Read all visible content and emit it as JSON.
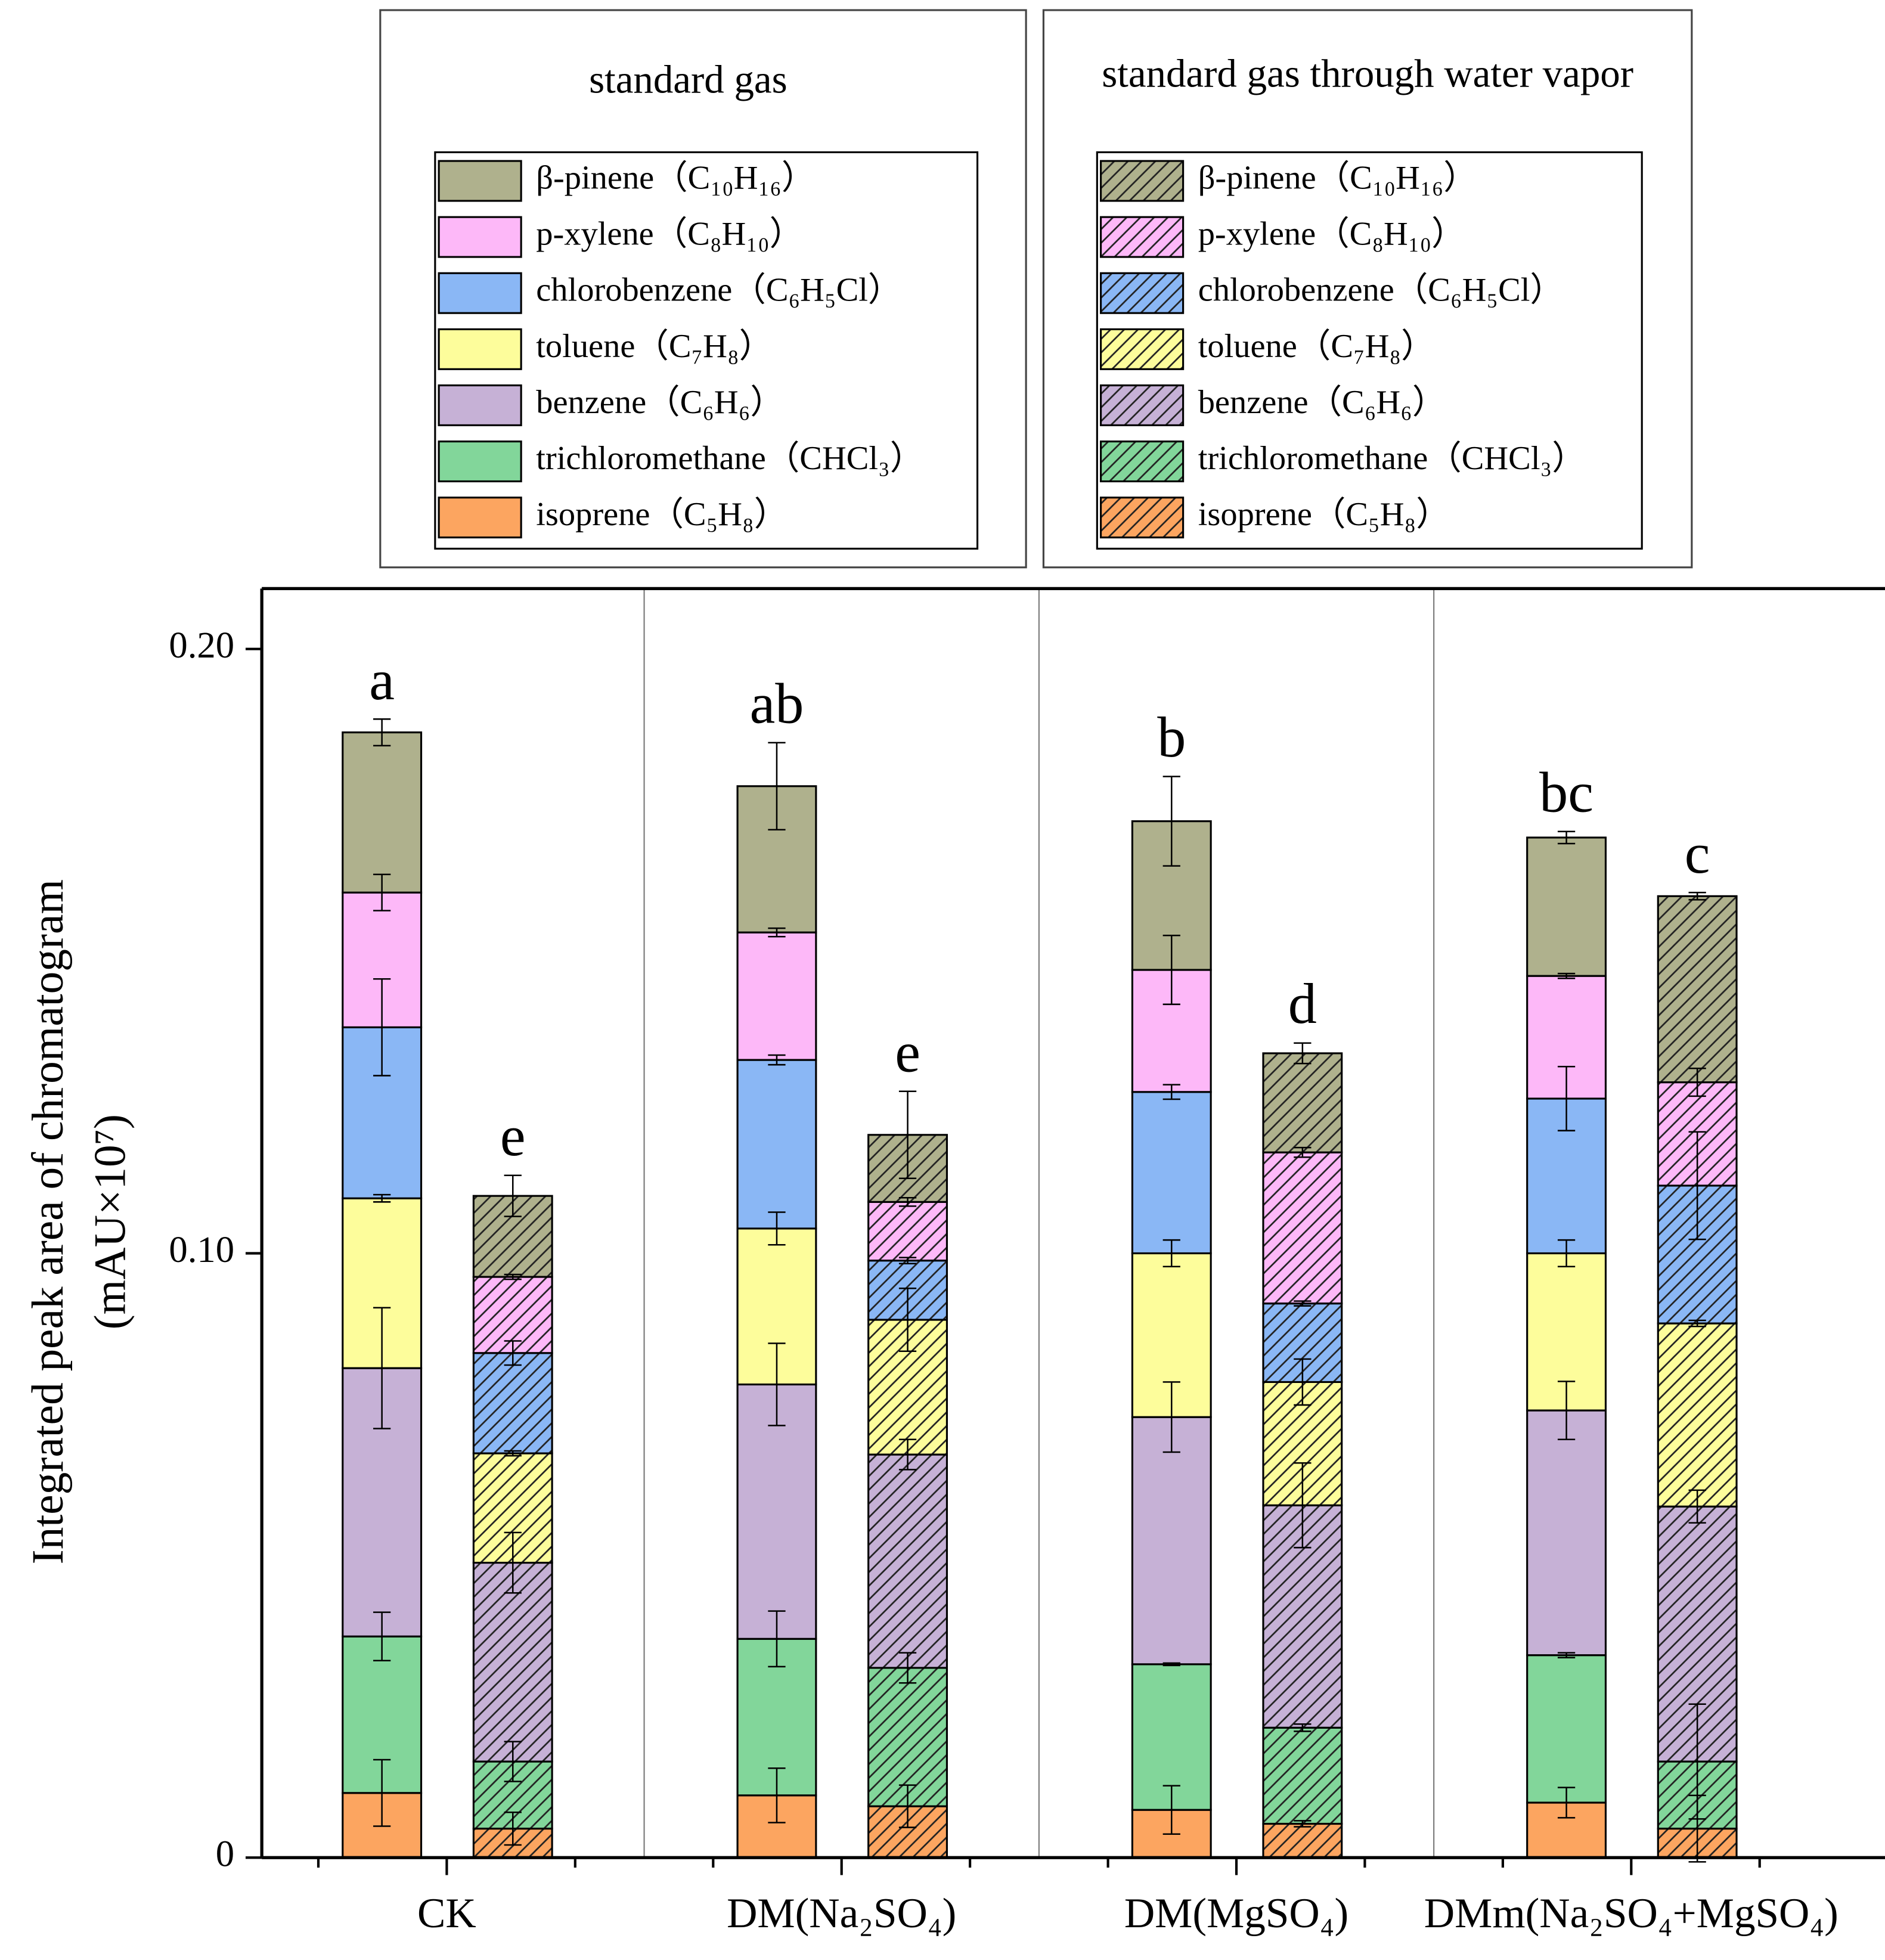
{
  "chart_data": {
    "type": "stacked-bar",
    "ylabel": [
      "Integrated peak area of chromatogram",
      "(mAU×10⁷)"
    ],
    "categories": [
      "CK",
      "DM(Na₂SO₄)",
      "DM(MgSO₄)",
      "DMm(Na₂SO₄+MgSO₄)"
    ],
    "ylim": [
      0,
      0.21
    ],
    "yticks": [
      0,
      {
        "value": 0.1,
        "label": "0.10"
      },
      {
        "value": 0.2,
        "label": "0.20"
      }
    ],
    "groups": [
      {
        "name": "standard gas",
        "hatch": false,
        "letters": [
          "a",
          "ab",
          "b",
          "bc"
        ],
        "series": [
          {
            "name": "isoprene（C₅H₈）",
            "color": "#fca560",
            "values": [
              0.0107,
              0.0103,
              0.0079,
              0.0091
            ],
            "errors": [
              0.0055,
              0.0045,
              0.004,
              0.0025
            ]
          },
          {
            "name": "trichloromethane（CHCl₃）",
            "color": "#82d69a",
            "values": [
              0.0259,
              0.0259,
              0.0241,
              0.0244
            ],
            "errors": [
              0.004,
              0.0046,
              0.0002,
              0.0004
            ]
          },
          {
            "name": "benzene（C₆H₆）",
            "color": "#c6b1d6",
            "values": [
              0.0444,
              0.0421,
              0.0409,
              0.0405
            ],
            "errors": [
              0.01,
              0.0068,
              0.0058,
              0.0048
            ]
          },
          {
            "name": "toluene（C₇H₈）",
            "color": "#fdfd9b",
            "values": [
              0.0281,
              0.0258,
              0.0271,
              0.026
            ],
            "errors": [
              0.0006,
              0.0027,
              0.0022,
              0.0022
            ]
          },
          {
            "name": "chlorobenzene（C₆H₅Cl）",
            "color": "#8ab7f5",
            "values": [
              0.0283,
              0.0279,
              0.0267,
              0.0256
            ],
            "errors": [
              0.008,
              0.0008,
              0.0012,
              0.0053
            ]
          },
          {
            "name": "p-xylene（C₈H₁₀）",
            "color": "#fdb8f8",
            "values": [
              0.0223,
              0.0211,
              0.0202,
              0.0203
            ],
            "errors": [
              0.003,
              0.0007,
              0.0057,
              0.0004
            ]
          },
          {
            "name": "β-pinene（C₁₀H₁₆）",
            "color": "#afb18d",
            "values": [
              0.0265,
              0.0242,
              0.0246,
              0.0229
            ],
            "errors": [
              0.0022,
              0.0072,
              0.0074,
              0.001
            ]
          }
        ]
      },
      {
        "name": "standard gas through water vapor",
        "hatch": true,
        "letters": [
          "e",
          "e",
          "d",
          "c"
        ],
        "series": [
          {
            "name": "isoprene（C₅H₈）",
            "color": "#fca560",
            "values": [
              0.0048,
              0.0085,
              0.0056,
              0.0048
            ],
            "errors": [
              0.0027,
              0.0035,
              0.0005,
              0.0055
            ]
          },
          {
            "name": "trichloromethane（CHCl₃）",
            "color": "#82d69a",
            "values": [
              0.0111,
              0.0229,
              0.0159,
              0.0111
            ],
            "errors": [
              0.0033,
              0.0025,
              0.0006,
              0.0095
            ]
          },
          {
            "name": "benzene（C₆H₆）",
            "color": "#c6b1d6",
            "values": [
              0.0329,
              0.0353,
              0.0368,
              0.0422
            ],
            "errors": [
              0.005,
              0.0025,
              0.007,
              0.0027
            ]
          },
          {
            "name": "toluene（C₇H₈）",
            "color": "#fdfd9b",
            "values": [
              0.0181,
              0.0223,
              0.0204,
              0.0303
            ],
            "errors": [
              0.0004,
              0.0052,
              0.0038,
              0.0005
            ]
          },
          {
            "name": "chlorobenzene（C₆H₅Cl）",
            "color": "#8ab7f5",
            "values": [
              0.0166,
              0.0098,
              0.013,
              0.0228
            ],
            "errors": [
              0.002,
              0.0005,
              0.0004,
              0.0089
            ]
          },
          {
            "name": "p-xylene（C₈H₁₀）",
            "color": "#fdb8f8",
            "values": [
              0.0126,
              0.0097,
              0.025,
              0.0171
            ],
            "errors": [
              0.0004,
              0.0007,
              0.0008,
              0.0023
            ]
          },
          {
            "name": "β-pinene（C₁₀H₁₆）",
            "color": "#afb18d",
            "values": [
              0.0134,
              0.0111,
              0.0164,
              0.0308
            ],
            "errors": [
              0.0034,
              0.0072,
              0.0017,
              0.0006
            ]
          }
        ]
      }
    ]
  }
}
